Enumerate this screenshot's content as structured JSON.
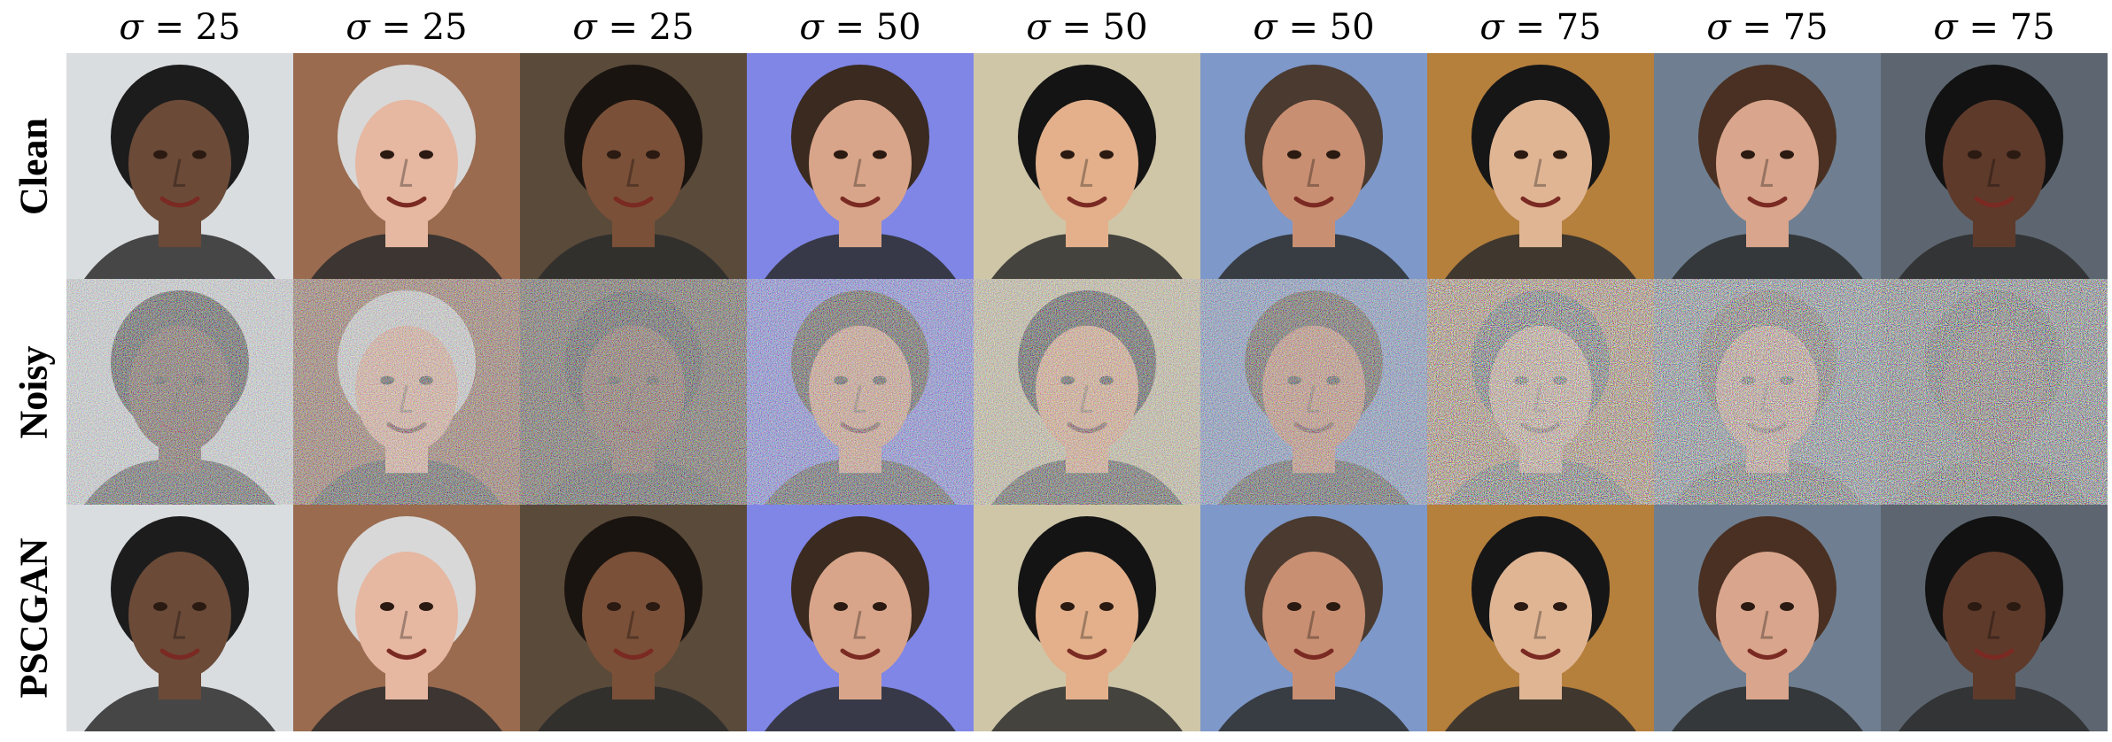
{
  "column_headers": [
    {
      "symbol": "σ",
      "value": "= 25"
    },
    {
      "symbol": "σ",
      "value": "= 25"
    },
    {
      "symbol": "σ",
      "value": "= 25"
    },
    {
      "symbol": "σ",
      "value": "= 50"
    },
    {
      "symbol": "σ",
      "value": "= 50"
    },
    {
      "symbol": "σ",
      "value": "= 50"
    },
    {
      "symbol": "σ",
      "value": "= 75"
    },
    {
      "symbol": "σ",
      "value": "= 75"
    },
    {
      "symbol": "σ",
      "value": "= 75"
    }
  ],
  "row_labels": [
    "Clean",
    "Noisy",
    "PSCGAN"
  ],
  "colors": {
    "backgrounds": [
      "#d9dde0",
      "#9a6b4f",
      "#5a4a3a",
      "#7f86e6",
      "#cfc6a8",
      "#7d98c9",
      "#b57f3c",
      "#6f7f91",
      "#5d6670"
    ],
    "skin": [
      "#6b4a38",
      "#e6b7a1",
      "#7a5038",
      "#d9a58a",
      "#e3b08b",
      "#c98f72",
      "#e0b594",
      "#d9a58c",
      "#5e3a2b"
    ],
    "hair": [
      "#1c1c1c",
      "#d8d8d8",
      "#1a1410",
      "#3a2a20",
      "#141414",
      "#4a3a30",
      "#161616",
      "#4a3022",
      "#121212"
    ]
  }
}
